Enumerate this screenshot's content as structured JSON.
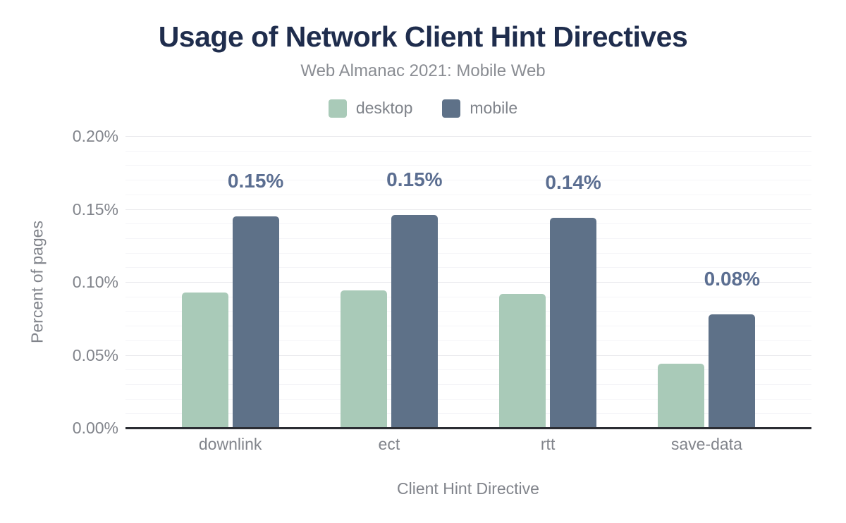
{
  "header": {
    "title": "Usage of Network Client Hint Directives",
    "subtitle": "Web Almanac 2021: Mobile Web"
  },
  "chart_data": {
    "type": "bar",
    "title": "Usage of Network Client Hint Directives",
    "subtitle": "Web Almanac 2021: Mobile Web",
    "categories": [
      "downlink",
      "ect",
      "rtt",
      "save-data"
    ],
    "series": [
      {
        "name": "desktop",
        "color": "#a9cab8",
        "values": [
          0.093,
          0.094,
          0.092,
          0.044
        ]
      },
      {
        "name": "mobile",
        "color": "#5e7188",
        "values": [
          0.145,
          0.146,
          0.144,
          0.078
        ],
        "labels": [
          "0.15%",
          "0.15%",
          "0.14%",
          "0.08%"
        ]
      }
    ],
    "xlabel": "Client Hint Directive",
    "ylabel": "Percent of pages",
    "ylim": [
      0,
      0.2
    ],
    "yticks": [
      {
        "value": 0.0,
        "label": "0.00%"
      },
      {
        "value": 0.05,
        "label": "0.05%"
      },
      {
        "value": 0.1,
        "label": "0.10%"
      },
      {
        "value": 0.15,
        "label": "0.15%"
      },
      {
        "value": 0.2,
        "label": "0.20%"
      }
    ],
    "minor_grid_step": 0.01,
    "grid": true,
    "legend_position": "top",
    "colors": {
      "title": "#1f2d4d",
      "subtitle": "#8a8d93",
      "axis_text": "#81848b",
      "value_label": "#5b6e91",
      "axis_line": "#2b2d33",
      "major_grid": "#e9e9ec",
      "minor_grid": "#f5f5f8"
    }
  }
}
